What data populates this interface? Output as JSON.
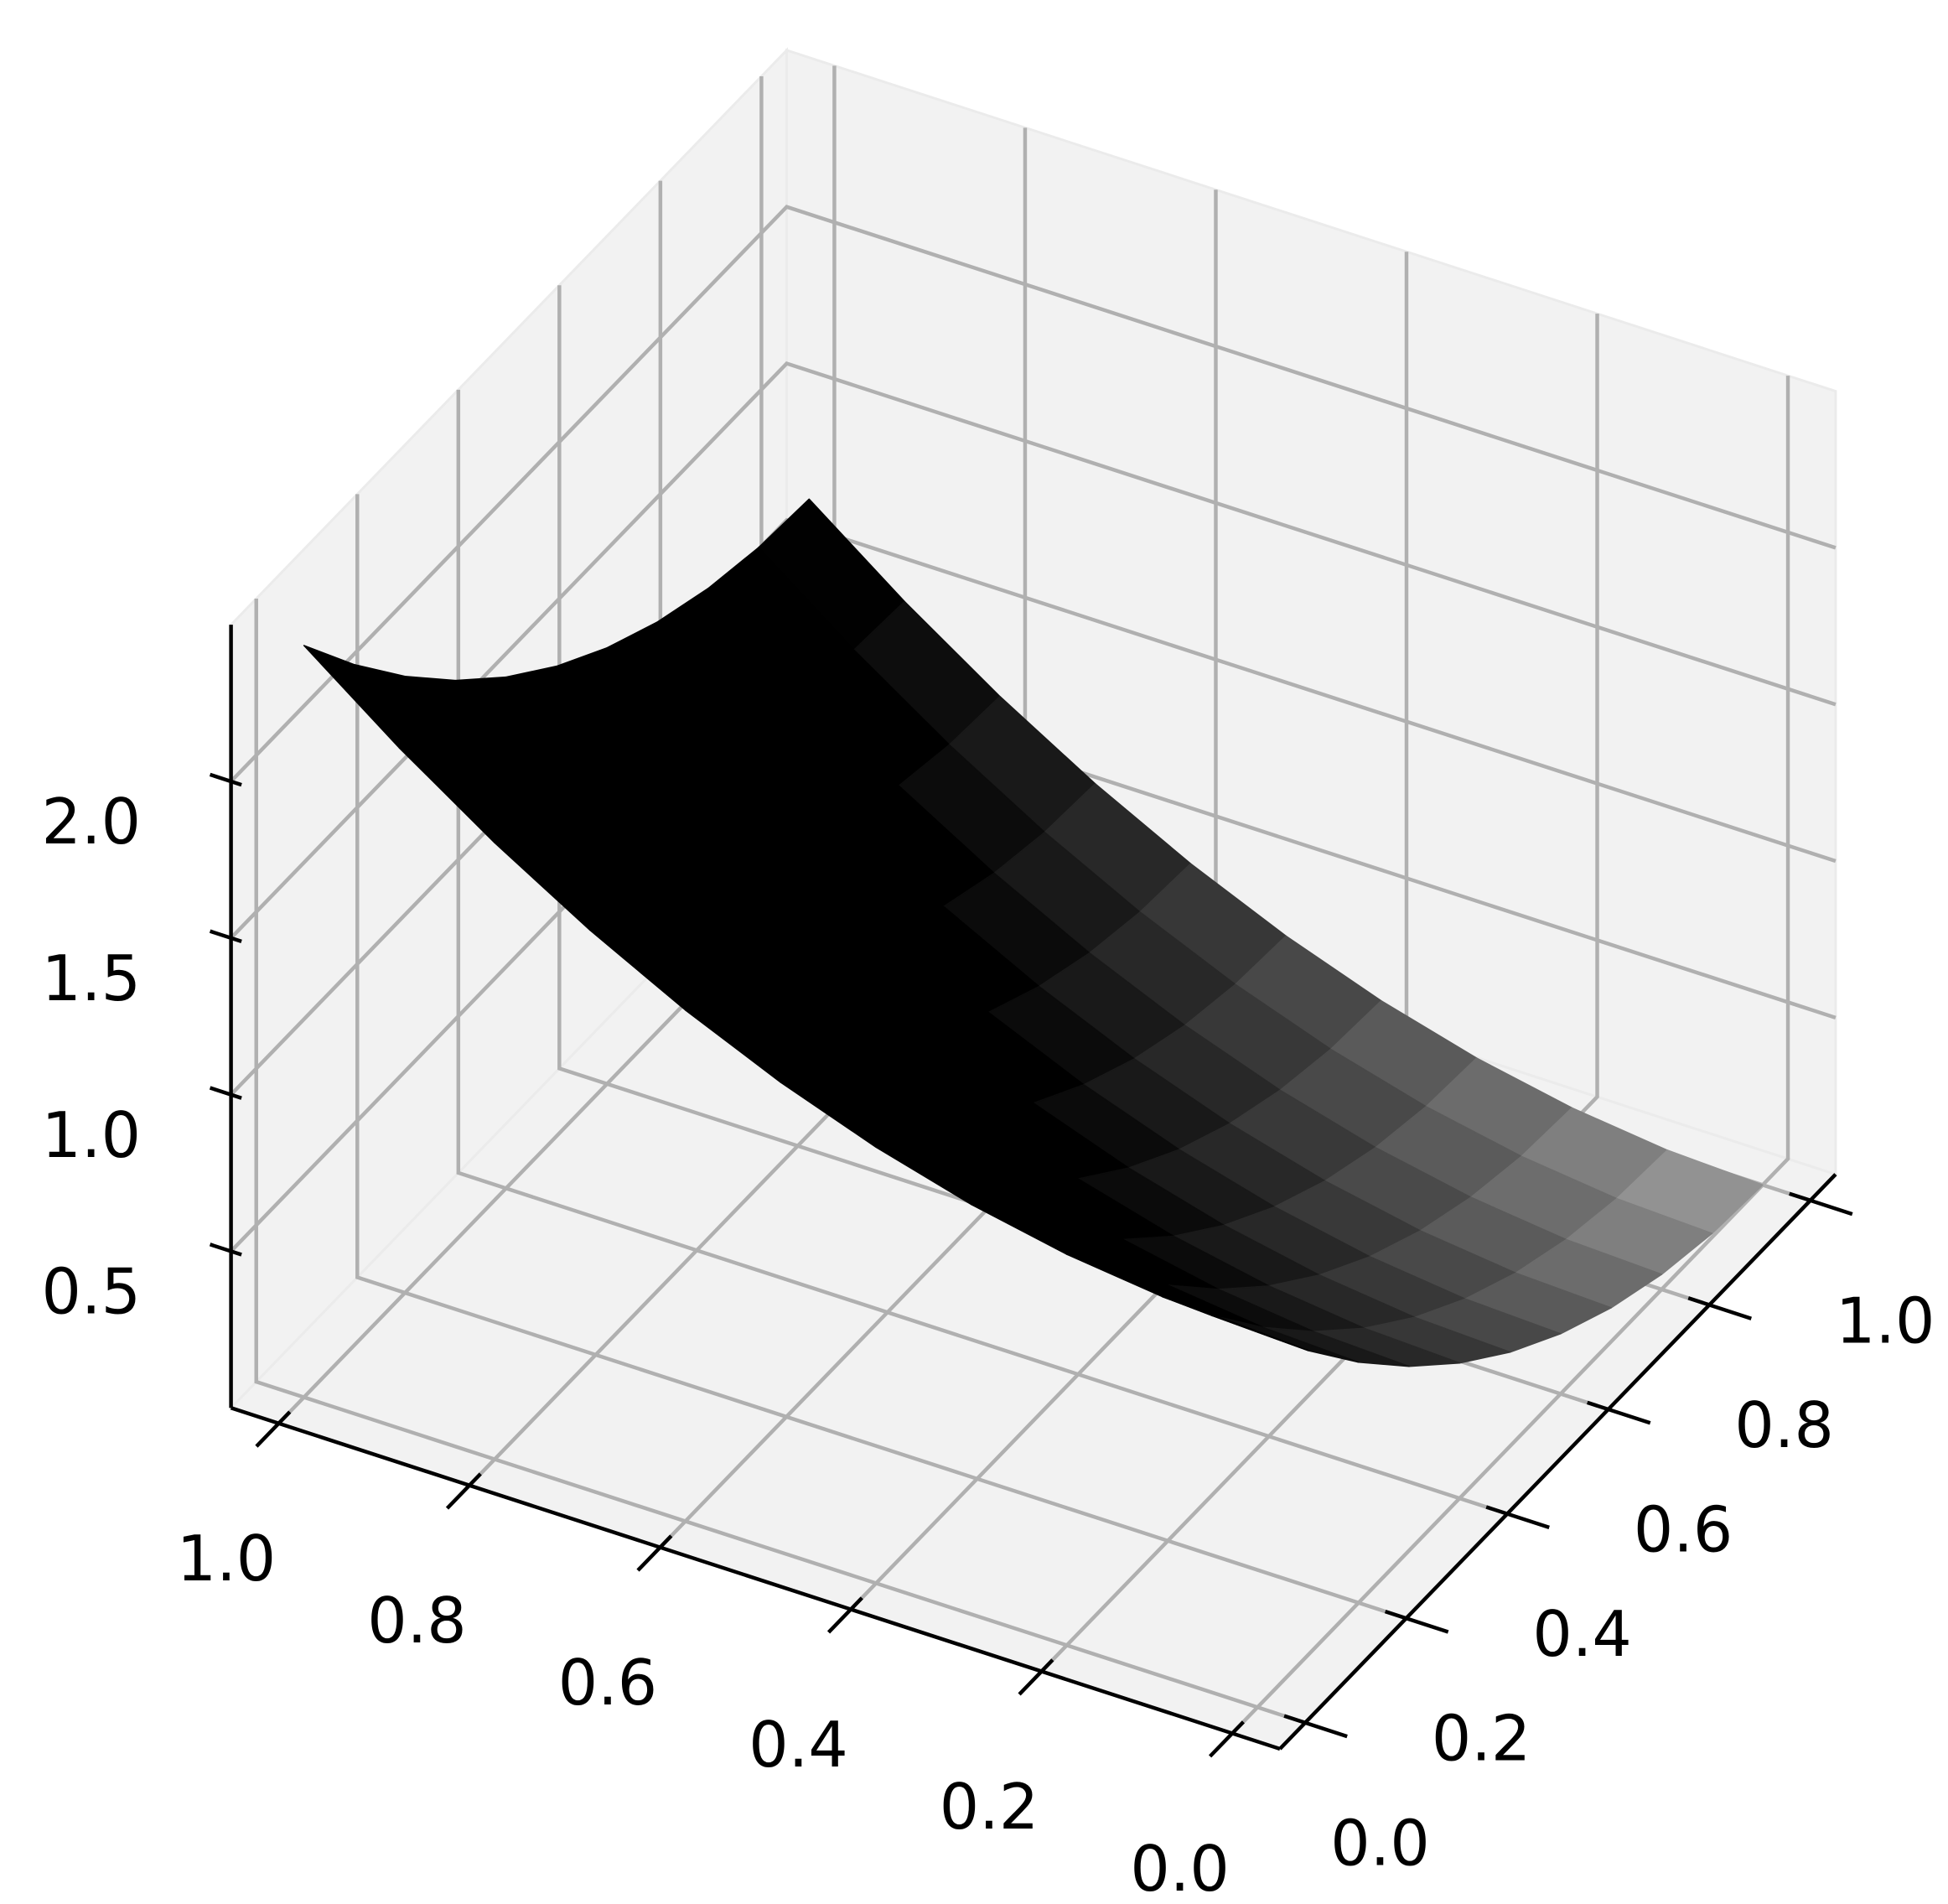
{
  "chart_data": {
    "type": "surface",
    "x": [
      0,
      0.1,
      0.2,
      0.3,
      0.4,
      0.5,
      0.6,
      0.7,
      0.8,
      0.9,
      1
    ],
    "y": [
      0,
      0.1,
      0.2,
      0.3,
      0.4,
      0.5,
      0.6,
      0.7,
      0.8,
      0.9,
      1
    ],
    "z": [
      [
        1.2,
        1.212,
        1.248,
        1.308,
        1.392,
        1.5,
        1.632,
        1.788,
        1.968,
        2.172,
        2.4
      ],
      [
        0.972,
        0.984,
        1.02,
        1.08,
        1.164,
        1.272,
        1.404,
        1.56,
        1.74,
        1.944,
        2.172
      ],
      [
        0.768,
        0.78,
        0.816,
        0.876,
        0.96,
        1.068,
        1.2,
        1.356,
        1.536,
        1.74,
        1.968
      ],
      [
        0.588,
        0.6,
        0.636,
        0.696,
        0.78,
        0.888,
        1.02,
        1.176,
        1.356,
        1.56,
        1.788
      ],
      [
        0.432,
        0.444,
        0.48,
        0.54,
        0.624,
        0.732,
        0.864,
        1.02,
        1.2,
        1.404,
        1.632
      ],
      [
        0.3,
        0.312,
        0.348,
        0.408,
        0.492,
        0.6,
        0.732,
        0.888,
        1.068,
        1.272,
        1.5
      ],
      [
        0.192,
        0.204,
        0.24,
        0.3,
        0.384,
        0.492,
        0.624,
        0.78,
        0.96,
        1.164,
        1.392
      ],
      [
        0.108,
        0.12,
        0.156,
        0.216,
        0.3,
        0.408,
        0.54,
        0.696,
        0.876,
        1.08,
        1.308
      ],
      [
        0.048,
        0.06,
        0.096,
        0.156,
        0.24,
        0.348,
        0.48,
        0.636,
        0.816,
        1.02,
        1.248
      ],
      [
        0.012,
        0.024,
        0.06,
        0.12,
        0.204,
        0.312,
        0.444,
        0.6,
        0.78,
        0.984,
        1.212
      ],
      [
        0,
        0.012,
        0.048,
        0.108,
        0.192,
        0.3,
        0.432,
        0.588,
        0.768,
        0.972,
        1.2
      ]
    ],
    "xlim": [
      -0.05,
      1.05
    ],
    "ylim": [
      -0.05,
      1.05
    ],
    "zlim": [
      0,
      2.5
    ],
    "xticks": [
      {
        "value": 0,
        "label": "0.0"
      },
      0.2,
      0.4,
      0.6,
      0.8,
      {
        "value": 1,
        "label": "1.0"
      }
    ],
    "yticks": [
      {
        "value": 0,
        "label": "0.0"
      },
      0.2,
      0.4,
      0.6,
      0.8,
      {
        "value": 1,
        "label": "1.0"
      }
    ],
    "zticks": [
      0.5,
      {
        "value": 1,
        "label": "1.0"
      },
      1.5,
      {
        "value": 2,
        "label": "2.0"
      }
    ],
    "cmap": "gray",
    "grid": true
  }
}
